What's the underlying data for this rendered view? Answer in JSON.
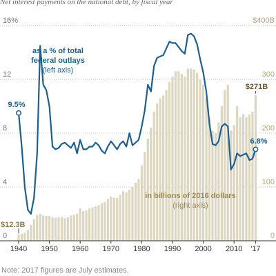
{
  "chart_data": {
    "type": "bar_line",
    "title": "Net interest payments on the national debt, by fiscal year",
    "note": "Note: 2017 figures are July estimates.",
    "x": [
      1940,
      1941,
      1942,
      1943,
      1944,
      1945,
      1946,
      1947,
      1948,
      1949,
      1950,
      1951,
      1952,
      1953,
      1954,
      1955,
      1956,
      1957,
      1958,
      1959,
      1960,
      1961,
      1962,
      1963,
      1964,
      1965,
      1966,
      1967,
      1968,
      1969,
      1970,
      1971,
      1972,
      1973,
      1974,
      1975,
      1976,
      1977,
      1978,
      1979,
      1980,
      1981,
      1982,
      1983,
      1984,
      1985,
      1986,
      1987,
      1988,
      1989,
      1990,
      1991,
      1992,
      1993,
      1994,
      1995,
      1996,
      1997,
      1998,
      1999,
      2000,
      2001,
      2002,
      2003,
      2004,
      2005,
      2006,
      2007,
      2008,
      2009,
      2010,
      2011,
      2012,
      2013,
      2014,
      2015,
      2016,
      2017
    ],
    "series": [
      {
        "type": "bar",
        "axis": "y2",
        "color": "#ddd6c1",
        "values": [
          12.3,
          13,
          15,
          20,
          30,
          40,
          48,
          50,
          47,
          46,
          46,
          44,
          43,
          44,
          44,
          42,
          44,
          47,
          48,
          50,
          60,
          55,
          56,
          60,
          62,
          64,
          66,
          70,
          72,
          78,
          82,
          80,
          80,
          86,
          92,
          90,
          95,
          100,
          108,
          115,
          140,
          165,
          190,
          210,
          240,
          255,
          265,
          270,
          280,
          295,
          305,
          315,
          315,
          310,
          305,
          320,
          320,
          318,
          312,
          300,
          290,
          265,
          230,
          205,
          200,
          220,
          250,
          280,
          290,
          205,
          215,
          250,
          230,
          235,
          230,
          235,
          240,
          271
        ]
      },
      {
        "type": "line",
        "axis": "y",
        "color": "#1d5f8f",
        "values": [
          9.5,
          7,
          4,
          2.3,
          2.0,
          3.2,
          6.5,
          14.5,
          11.6,
          11.2,
          10.0,
          7.0,
          6.8,
          6.9,
          7.2,
          7.3,
          7.1,
          6.9,
          7.3,
          6.5,
          7.5,
          6.8,
          6.8,
          7.0,
          7.0,
          7.3,
          7.1,
          6.7,
          6.5,
          7.0,
          7.4,
          7.1,
          6.8,
          7.2,
          7.4,
          7.0,
          8.0,
          7.1,
          7.3,
          7.5,
          8.5,
          9.7,
          11.6,
          11.1,
          13.0,
          13.6,
          13.7,
          13.8,
          14.3,
          14.8,
          14.7,
          14.7,
          14.4,
          14.1,
          13.9,
          15.3,
          15.4,
          15.2,
          14.6,
          13.5,
          12.5,
          11.1,
          8.7,
          7.2,
          7.1,
          7.4,
          8.5,
          8.7,
          8.5,
          5.3,
          5.7,
          6.5,
          6.3,
          6.4,
          6.5,
          6.0,
          6.1,
          6.8
        ]
      }
    ],
    "xlim": [
      1940,
      2017
    ],
    "xticks": [
      1940,
      1950,
      1960,
      1970,
      1980,
      1990,
      2000,
      2010,
      {
        "value": 2017,
        "label": "'17"
      }
    ],
    "ylim": [
      0,
      16
    ],
    "yticks": [
      0,
      4,
      8,
      12,
      {
        "value": 16,
        "label": "16%"
      }
    ],
    "y2lim": [
      0,
      400
    ],
    "y2ticks": [
      0,
      100,
      200,
      300,
      {
        "value": 400,
        "label": "$400B"
      }
    ],
    "grid": true,
    "annotations": [
      {
        "text": "9.5%"
      },
      {
        "text": "$12.3B"
      },
      {
        "text": "$271B"
      },
      {
        "text": "6.8%"
      },
      {
        "text": "as a % of total"
      },
      {
        "text": "federal outlays"
      },
      {
        "text": "(left axis)"
      },
      {
        "text": "in billions of 2016 dollars"
      },
      {
        "text": "(right axis)"
      }
    ]
  }
}
